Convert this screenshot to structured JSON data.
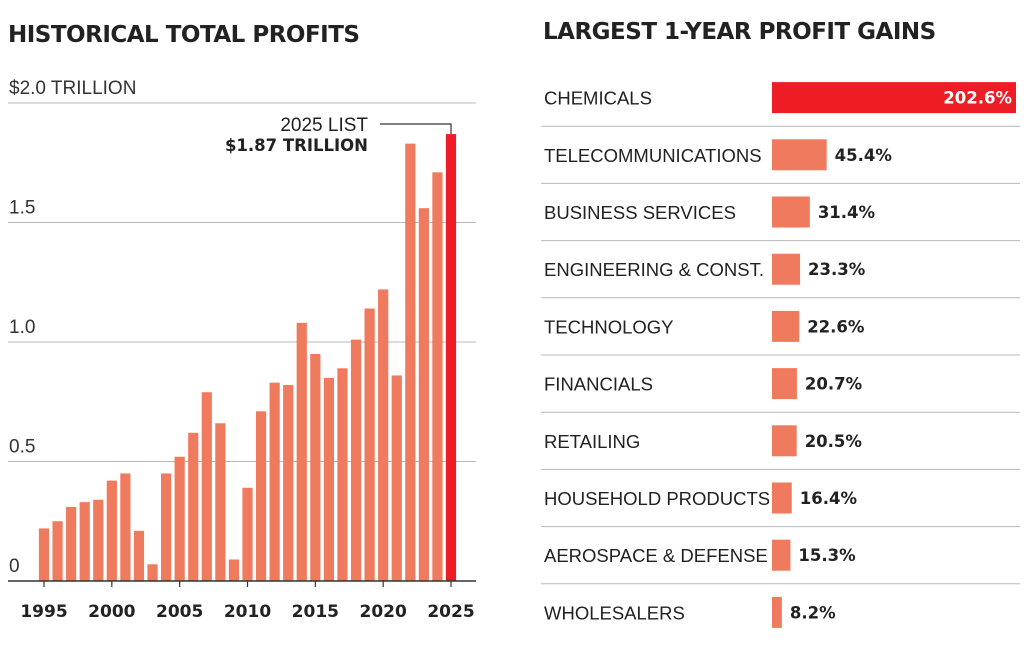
{
  "colors": {
    "bar": "#F07A5E",
    "highlight": "#EE1C25",
    "grid": "#b8b8b8",
    "axis": "#333333",
    "text": "#222222"
  },
  "chart_data": [
    {
      "type": "bar",
      "title": "HISTORICAL TOTAL PROFITS",
      "ylabel": "",
      "xlabel": "",
      "ylim": [
        0,
        2.0
      ],
      "y_ticks": [
        {
          "value": 0,
          "label": "0"
        },
        {
          "value": 0.5,
          "label": "0.5"
        },
        {
          "value": 1.0,
          "label": "1.0"
        },
        {
          "value": 1.5,
          "label": "1.5"
        },
        {
          "value": 2.0,
          "label": "$2.0 TRILLION"
        }
      ],
      "x_tick_labels": [
        "1995",
        "2000",
        "2005",
        "2010",
        "2015",
        "2020",
        "2025"
      ],
      "categories": [
        "1995",
        "1996",
        "1997",
        "1998",
        "1999",
        "2000",
        "2001",
        "2002",
        "2003",
        "2004",
        "2005",
        "2006",
        "2007",
        "2008",
        "2009",
        "2010",
        "2011",
        "2012",
        "2013",
        "2014",
        "2015",
        "2016",
        "2017",
        "2018",
        "2019",
        "2020",
        "2021",
        "2022",
        "2023",
        "2024",
        "2025"
      ],
      "values": [
        0.22,
        0.25,
        0.31,
        0.33,
        0.34,
        0.42,
        0.45,
        0.21,
        0.07,
        0.45,
        0.52,
        0.62,
        0.79,
        0.66,
        0.09,
        0.39,
        0.71,
        0.83,
        0.82,
        1.08,
        0.95,
        0.85,
        0.89,
        1.01,
        1.14,
        1.22,
        0.86,
        1.83,
        1.56,
        1.71,
        1.87
      ],
      "highlight_category": "2025",
      "annotation": {
        "line1": "2025 LIST",
        "line2": "$1.87 TRILLION"
      },
      "grid": true
    },
    {
      "type": "bar",
      "orientation": "horizontal",
      "title": "LARGEST 1-YEAR PROFIT GAINS",
      "categories": [
        "CHEMICALS",
        "TELECOMMUNICATIONS",
        "BUSINESS SERVICES",
        "ENGINEERING & CONST.",
        "TECHNOLOGY",
        "FINANCIALS",
        "RETAILING",
        "HOUSEHOLD PRODUCTS",
        "AEROSPACE & DEFENSE",
        "WHOLESALERS"
      ],
      "values": [
        202.6,
        45.4,
        31.4,
        23.3,
        22.6,
        20.7,
        20.5,
        16.4,
        15.3,
        8.2
      ],
      "value_labels": [
        "202.6%",
        "45.4%",
        "31.4%",
        "23.3%",
        "22.6%",
        "20.7%",
        "20.5%",
        "16.4%",
        "15.3%",
        "8.2%"
      ],
      "xlim": [
        0,
        202.6
      ],
      "highlight_category": "CHEMICALS",
      "grid": true
    }
  ]
}
